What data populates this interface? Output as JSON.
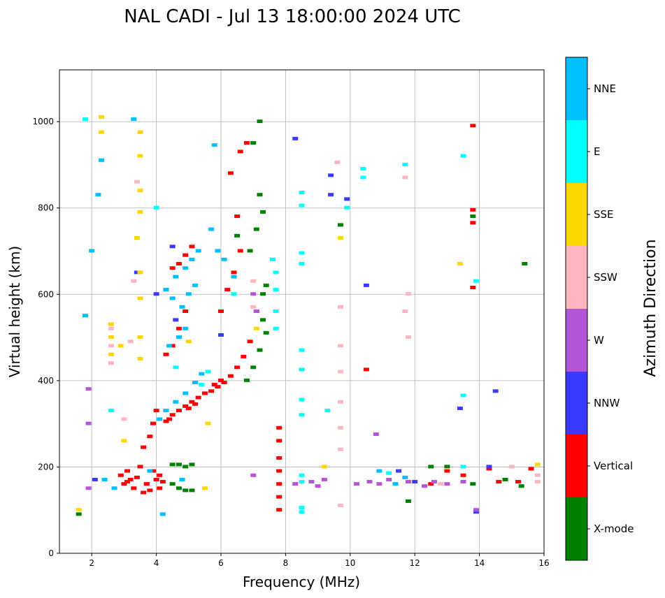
{
  "chart_data": {
    "type": "scatter",
    "title": "NAL CADI - Jul 13 18:00:00 2024 UTC",
    "xlabel": "Frequency (MHz)",
    "ylabel": "Virtual height (km)",
    "xlim": [
      1,
      16
    ],
    "ylim": [
      0,
      1120
    ],
    "xticks": [
      "2",
      "4",
      "6",
      "8",
      "10",
      "12",
      "14",
      "16"
    ],
    "yticks": [
      "0",
      "200",
      "400",
      "600",
      "800",
      "1000"
    ],
    "grid": true,
    "colorbar": {
      "title": "Azimuth Direction",
      "categories": [
        {
          "name": "X-mode",
          "color": "#008000"
        },
        {
          "name": "Vertical",
          "color": "#ff0000"
        },
        {
          "name": "NNW",
          "color": "#3a3aff"
        },
        {
          "name": "W",
          "color": "#b455d8"
        },
        {
          "name": "SSW",
          "color": "#ffb6c1"
        },
        {
          "name": "SSE",
          "color": "#ffd700"
        },
        {
          "name": "E",
          "color": "#00ffff"
        },
        {
          "name": "NNE",
          "color": "#00bfff"
        }
      ]
    },
    "series": [
      {
        "name": "Vertical",
        "points": [
          [
            2.9,
            180
          ],
          [
            3.0,
            160
          ],
          [
            3.1,
            190
          ],
          [
            3.2,
            170
          ],
          [
            3.3,
            150
          ],
          [
            3.4,
            175
          ],
          [
            3.5,
            200
          ],
          [
            3.6,
            140
          ],
          [
            3.7,
            160
          ],
          [
            3.8,
            145
          ],
          [
            3.9,
            190
          ],
          [
            4.0,
            170
          ],
          [
            4.1,
            150
          ],
          [
            4.2,
            165
          ],
          [
            3.6,
            245
          ],
          [
            3.8,
            270
          ],
          [
            3.9,
            300
          ],
          [
            4.0,
            330
          ],
          [
            4.3,
            305
          ],
          [
            4.5,
            320
          ],
          [
            4.7,
            330
          ],
          [
            4.9,
            340
          ],
          [
            5.1,
            350
          ],
          [
            5.3,
            360
          ],
          [
            5.5,
            370
          ],
          [
            5.7,
            375
          ],
          [
            5.9,
            385
          ],
          [
            6.1,
            395
          ],
          [
            6.3,
            410
          ],
          [
            6.5,
            430
          ],
          [
            6.7,
            455
          ],
          [
            6.9,
            490
          ],
          [
            6.0,
            560
          ],
          [
            6.2,
            610
          ],
          [
            6.4,
            650
          ],
          [
            6.6,
            700
          ],
          [
            6.3,
            880
          ],
          [
            6.6,
            930
          ],
          [
            6.8,
            950
          ],
          [
            6.5,
            780
          ],
          [
            4.3,
            460
          ],
          [
            4.5,
            480
          ],
          [
            4.7,
            520
          ],
          [
            4.9,
            560
          ],
          [
            4.5,
            660
          ],
          [
            4.7,
            670
          ],
          [
            4.9,
            690
          ],
          [
            5.1,
            710
          ],
          [
            7.8,
            290
          ],
          [
            7.8,
            260
          ],
          [
            7.8,
            220
          ],
          [
            7.8,
            190
          ],
          [
            7.8,
            160
          ],
          [
            7.8,
            130
          ],
          [
            7.8,
            100
          ],
          [
            10.5,
            425
          ],
          [
            12.5,
            160
          ],
          [
            13.0,
            190
          ],
          [
            13.5,
            180
          ],
          [
            14.3,
            195
          ],
          [
            14.6,
            165
          ],
          [
            15.2,
            165
          ],
          [
            15.6,
            195
          ],
          [
            13.8,
            990
          ],
          [
            13.8,
            795
          ],
          [
            13.8,
            765
          ],
          [
            13.8,
            615
          ],
          [
            5.8,
            390
          ],
          [
            6.0,
            400
          ],
          [
            5.2,
            345
          ],
          [
            5.0,
            335
          ],
          [
            4.4,
            310
          ],
          [
            3.7,
            160
          ],
          [
            4.1,
            180
          ],
          [
            3.1,
            165
          ]
        ]
      },
      {
        "name": "X-mode",
        "points": [
          [
            4.5,
            205
          ],
          [
            4.7,
            205
          ],
          [
            4.9,
            200
          ],
          [
            5.1,
            205
          ],
          [
            4.5,
            160
          ],
          [
            4.7,
            150
          ],
          [
            4.9,
            145
          ],
          [
            5.1,
            145
          ],
          [
            6.8,
            400
          ],
          [
            7.0,
            430
          ],
          [
            7.2,
            470
          ],
          [
            7.4,
            510
          ],
          [
            7.1,
            560
          ],
          [
            7.3,
            600
          ],
          [
            6.9,
            700
          ],
          [
            7.1,
            750
          ],
          [
            7.3,
            790
          ],
          [
            7.0,
            950
          ],
          [
            7.2,
            1000
          ],
          [
            6.5,
            735
          ],
          [
            7.2,
            830
          ],
          [
            7.3,
            540
          ],
          [
            7.4,
            620
          ],
          [
            13.8,
            780
          ],
          [
            9.7,
            760
          ],
          [
            12.5,
            200
          ],
          [
            13.8,
            160
          ],
          [
            14.8,
            170
          ],
          [
            15.3,
            155
          ],
          [
            15.4,
            670
          ],
          [
            13.0,
            200
          ],
          [
            11.8,
            120
          ],
          [
            1.6,
            90
          ]
        ]
      },
      {
        "name": "NNW",
        "points": [
          [
            4.0,
            600
          ],
          [
            4.3,
            610
          ],
          [
            4.5,
            710
          ],
          [
            4.6,
            540
          ],
          [
            8.3,
            960
          ],
          [
            9.4,
            875
          ],
          [
            9.4,
            830
          ],
          [
            9.9,
            820
          ],
          [
            10.5,
            620
          ],
          [
            11.5,
            190
          ],
          [
            12.0,
            165
          ],
          [
            13.4,
            335
          ],
          [
            13.9,
            95
          ],
          [
            14.3,
            200
          ],
          [
            14.5,
            375
          ],
          [
            6.0,
            505
          ],
          [
            3.4,
            650
          ],
          [
            2.1,
            170
          ]
        ]
      },
      {
        "name": "W",
        "points": [
          [
            8.3,
            160
          ],
          [
            8.8,
            165
          ],
          [
            9.0,
            155
          ],
          [
            9.2,
            170
          ],
          [
            10.2,
            160
          ],
          [
            10.6,
            165
          ],
          [
            10.9,
            160
          ],
          [
            11.2,
            170
          ],
          [
            11.8,
            165
          ],
          [
            12.3,
            155
          ],
          [
            12.6,
            165
          ],
          [
            13.0,
            160
          ],
          [
            13.5,
            165
          ],
          [
            1.9,
            380
          ],
          [
            1.9,
            300
          ],
          [
            1.9,
            150
          ],
          [
            7.0,
            600
          ],
          [
            7.1,
            560
          ],
          [
            7.0,
            180
          ],
          [
            10.8,
            275
          ],
          [
            13.9,
            100
          ]
        ]
      },
      {
        "name": "SSW",
        "points": [
          [
            2.6,
            520
          ],
          [
            2.6,
            480
          ],
          [
            2.6,
            440
          ],
          [
            3.0,
            310
          ],
          [
            3.2,
            490
          ],
          [
            3.4,
            860
          ],
          [
            3.3,
            630
          ],
          [
            7.0,
            630
          ],
          [
            7.0,
            570
          ],
          [
            9.7,
            570
          ],
          [
            9.7,
            480
          ],
          [
            9.7,
            420
          ],
          [
            9.7,
            350
          ],
          [
            9.7,
            290
          ],
          [
            9.7,
            240
          ],
          [
            9.7,
            110
          ],
          [
            11.8,
            600
          ],
          [
            11.7,
            560
          ],
          [
            11.8,
            500
          ],
          [
            11.7,
            870
          ],
          [
            9.6,
            905
          ],
          [
            15.8,
            180
          ],
          [
            15.8,
            165
          ],
          [
            15.0,
            200
          ],
          [
            12.8,
            160
          ]
        ]
      },
      {
        "name": "SSE",
        "points": [
          [
            2.3,
            1010
          ],
          [
            2.3,
            975
          ],
          [
            2.6,
            530
          ],
          [
            2.6,
            500
          ],
          [
            2.6,
            460
          ],
          [
            3.5,
            975
          ],
          [
            3.5,
            920
          ],
          [
            3.5,
            840
          ],
          [
            3.5,
            790
          ],
          [
            3.4,
            730
          ],
          [
            3.5,
            650
          ],
          [
            3.5,
            590
          ],
          [
            3.5,
            500
          ],
          [
            3.5,
            450
          ],
          [
            2.9,
            480
          ],
          [
            3.0,
            260
          ],
          [
            5.0,
            490
          ],
          [
            5.5,
            150
          ],
          [
            5.6,
            300
          ],
          [
            7.1,
            520
          ],
          [
            8.5,
            670
          ],
          [
            9.7,
            730
          ],
          [
            13.4,
            670
          ],
          [
            15.8,
            205
          ],
          [
            1.6,
            100
          ],
          [
            9.2,
            200
          ]
        ]
      },
      {
        "name": "E",
        "points": [
          [
            8.5,
            835
          ],
          [
            8.5,
            805
          ],
          [
            8.5,
            695
          ],
          [
            8.5,
            670
          ],
          [
            8.5,
            470
          ],
          [
            8.5,
            425
          ],
          [
            8.5,
            355
          ],
          [
            8.5,
            320
          ],
          [
            8.5,
            180
          ],
          [
            8.5,
            165
          ],
          [
            8.5,
            105
          ],
          [
            8.5,
            95
          ],
          [
            7.7,
            650
          ],
          [
            7.7,
            610
          ],
          [
            7.7,
            560
          ],
          [
            7.7,
            520
          ],
          [
            7.6,
            680
          ],
          [
            10.4,
            890
          ],
          [
            10.4,
            870
          ],
          [
            11.7,
            900
          ],
          [
            13.5,
            920
          ],
          [
            13.5,
            365
          ],
          [
            13.9,
            630
          ],
          [
            13.5,
            200
          ],
          [
            11.2,
            185
          ],
          [
            2.6,
            330
          ],
          [
            1.8,
            1005
          ],
          [
            4.0,
            800
          ],
          [
            4.6,
            430
          ],
          [
            5.4,
            390
          ],
          [
            5.6,
            420
          ],
          [
            6.4,
            600
          ],
          [
            9.9,
            800
          ],
          [
            9.3,
            330
          ]
        ]
      },
      {
        "name": "NNE",
        "points": [
          [
            4.1,
            310
          ],
          [
            4.3,
            330
          ],
          [
            4.6,
            350
          ],
          [
            4.9,
            370
          ],
          [
            5.2,
            395
          ],
          [
            5.4,
            415
          ],
          [
            4.3,
            610
          ],
          [
            4.6,
            640
          ],
          [
            4.9,
            660
          ],
          [
            5.1,
            680
          ],
          [
            5.3,
            700
          ],
          [
            4.5,
            590
          ],
          [
            4.8,
            570
          ],
          [
            5.0,
            600
          ],
          [
            5.2,
            620
          ],
          [
            4.4,
            480
          ],
          [
            4.7,
            500
          ],
          [
            4.9,
            520
          ],
          [
            5.7,
            750
          ],
          [
            5.9,
            700
          ],
          [
            6.1,
            680
          ],
          [
            6.4,
            640
          ],
          [
            2.3,
            910
          ],
          [
            2.2,
            830
          ],
          [
            2.0,
            700
          ],
          [
            1.8,
            550
          ],
          [
            2.7,
            150
          ],
          [
            2.4,
            170
          ],
          [
            4.2,
            90
          ],
          [
            5.8,
            945
          ],
          [
            3.3,
            1005
          ],
          [
            10.9,
            190
          ],
          [
            11.4,
            160
          ],
          [
            11.7,
            175
          ],
          [
            3.8,
            190
          ],
          [
            4.8,
            170
          ]
        ]
      }
    ]
  }
}
